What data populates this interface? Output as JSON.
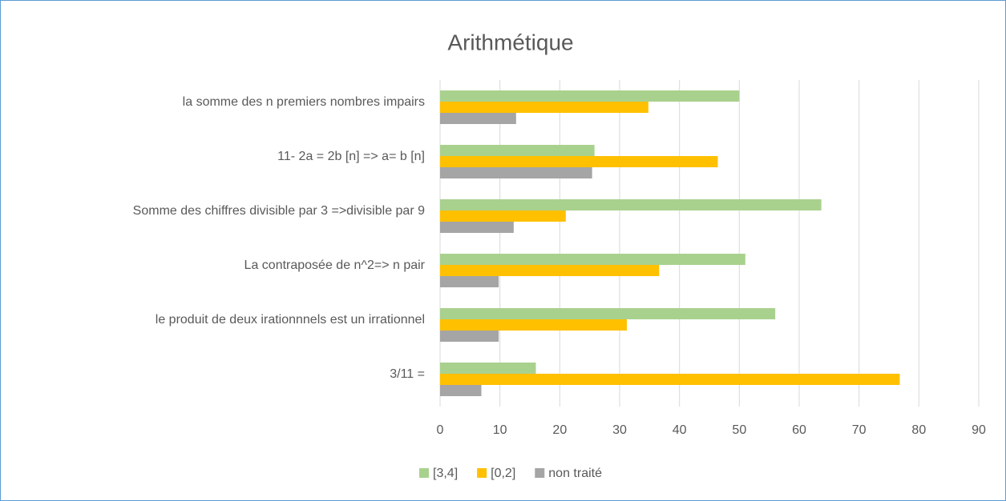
{
  "chart_data": {
    "type": "barh",
    "title": "Arithmétique",
    "categories": [
      "la somme des n premiers nombres impairs",
      "11- 2a = 2b [n] => a= b [n]",
      "Somme des chiffres divisible par 3 =>divisible par 9",
      "La contraposée de n^2=> n pair",
      "le produit de deux irationnnels est un irrationnel",
      "3/11 ="
    ],
    "series": [
      {
        "name": "[3,4]",
        "color": "#a9d18e",
        "values": [
          50,
          25.8,
          63.7,
          51,
          56,
          16
        ]
      },
      {
        "name": "[0,2]",
        "color": "#ffc000",
        "values": [
          34.8,
          46.4,
          21,
          36.6,
          31.2,
          76.8
        ]
      },
      {
        "name": "non traité",
        "color": "#a5a5a5",
        "values": [
          12.7,
          25.4,
          12.3,
          9.8,
          9.8,
          6.9
        ]
      }
    ],
    "xlim": [
      0,
      90
    ],
    "xticks": [
      0,
      10,
      20,
      30,
      40,
      50,
      60,
      70,
      80,
      90
    ],
    "grid": true,
    "legend": "bottom"
  }
}
